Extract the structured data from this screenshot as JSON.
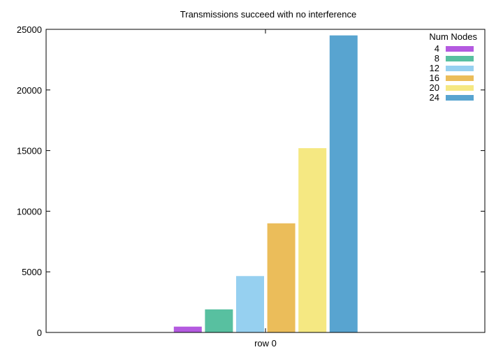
{
  "chart_data": {
    "type": "bar",
    "title": "Transmissions succeed with no interference",
    "xlabel": "",
    "ylabel": "",
    "categories": [
      "row 0"
    ],
    "legend_title": "Num Nodes",
    "legend_position": "top-right",
    "ylim": [
      0,
      25000
    ],
    "yticks": [
      "0",
      "5000",
      "10000",
      "15000",
      "20000",
      "25000"
    ],
    "grid": false,
    "series": [
      {
        "name": "4",
        "values": [
          480
        ],
        "color": "#b45ae0"
      },
      {
        "name": "8",
        "values": [
          1900
        ],
        "color": "#58c0a0"
      },
      {
        "name": "12",
        "values": [
          4650
        ],
        "color": "#96d0f0"
      },
      {
        "name": "16",
        "values": [
          9000
        ],
        "color": "#ebbd5a"
      },
      {
        "name": "20",
        "values": [
          15200
        ],
        "color": "#f5e882"
      },
      {
        "name": "24",
        "values": [
          24500
        ],
        "color": "#58a4d0"
      }
    ]
  }
}
